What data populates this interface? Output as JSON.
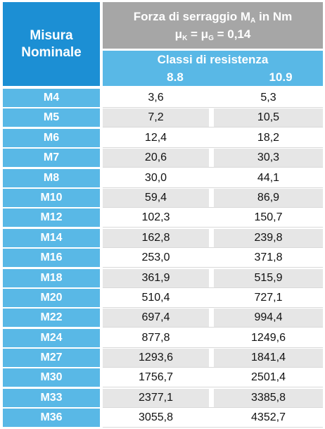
{
  "header": {
    "size_label_1": "Misura",
    "size_label_2": "Nominale",
    "force_title_pre": "Forza di serraggio M",
    "force_title_sub": "A",
    "force_title_post": " in Nm",
    "mu_1": "μ",
    "mu_1_sub": "K",
    "mu_eq": " = μ",
    "mu_2_sub": "G",
    "mu_value": " = 0,14",
    "classes_label": "Classi di resistenza",
    "grade_1": "8.8",
    "grade_2": "10.9"
  },
  "rows": [
    {
      "size": "M4",
      "v88": "3,6",
      "v109": "5,3"
    },
    {
      "size": "M5",
      "v88": "7,2",
      "v109": "10,5"
    },
    {
      "size": "M6",
      "v88": "12,4",
      "v109": "18,2"
    },
    {
      "size": "M7",
      "v88": "20,6",
      "v109": "30,3"
    },
    {
      "size": "M8",
      "v88": "30,0",
      "v109": "44,1"
    },
    {
      "size": "M10",
      "v88": "59,4",
      "v109": "86,9"
    },
    {
      "size": "M12",
      "v88": "102,3",
      "v109": "150,7"
    },
    {
      "size": "M14",
      "v88": "162,8",
      "v109": "239,8"
    },
    {
      "size": "M16",
      "v88": "253,0",
      "v109": "371,8"
    },
    {
      "size": "M18",
      "v88": "361,9",
      "v109": "515,9"
    },
    {
      "size": "M20",
      "v88": "510,4",
      "v109": "727,1"
    },
    {
      "size": "M22",
      "v88": "697,4",
      "v109": "994,4"
    },
    {
      "size": "M24",
      "v88": "877,8",
      "v109": "1249,6"
    },
    {
      "size": "M27",
      "v88": "1293,6",
      "v109": "1841,4"
    },
    {
      "size": "M30",
      "v88": "1756,7",
      "v109": "2501,4"
    },
    {
      "size": "M33",
      "v88": "2377,1",
      "v109": "3385,8"
    },
    {
      "size": "M36",
      "v88": "3055,8",
      "v109": "4352,7"
    }
  ]
}
